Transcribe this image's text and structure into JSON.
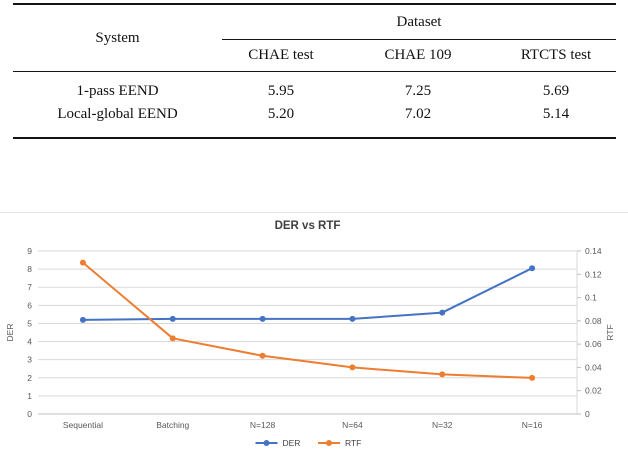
{
  "table": {
    "header": {
      "system": "System",
      "dataset": "Dataset"
    },
    "columns": [
      "CHAE test",
      "CHAE 109",
      "RTCTS test"
    ],
    "rows": [
      {
        "system": "1-pass EEND",
        "values": [
          "5.95",
          "7.25",
          "5.69"
        ]
      },
      {
        "system": "Local-global EEND",
        "values": [
          "5.20",
          "7.02",
          "5.14"
        ]
      }
    ]
  },
  "chart_data": {
    "type": "line",
    "title": "DER vs RTF",
    "categories": [
      "Sequential",
      "Batching",
      "N=128",
      "N=64",
      "N=32",
      "N=16"
    ],
    "series": [
      {
        "name": "DER",
        "axis": "left",
        "color": "#4472C4",
        "values": [
          5.2,
          5.25,
          5.25,
          5.25,
          5.6,
          8.05
        ]
      },
      {
        "name": "RTF",
        "axis": "right",
        "color": "#ED7D31",
        "values": [
          0.13,
          0.065,
          0.05,
          0.04,
          0.034,
          0.031
        ]
      }
    ],
    "left_axis": {
      "label": "DER",
      "min": 0,
      "max": 9,
      "ticks": [
        0,
        1,
        2,
        3,
        4,
        5,
        6,
        7,
        8,
        9
      ],
      "tick_labels": [
        "0",
        "1",
        "2",
        "3",
        "4",
        "5",
        "6",
        "7",
        "8",
        "9"
      ]
    },
    "right_axis": {
      "label": "RTF",
      "min": 0,
      "max": 0.14,
      "ticks": [
        0,
        0.02,
        0.04,
        0.06,
        0.08,
        0.1,
        0.12,
        0.14
      ],
      "tick_labels": [
        "0",
        "0.02",
        "0.04",
        "0.06",
        "0.08",
        "0.1",
        "0.12",
        "0.14"
      ]
    },
    "legend": {
      "position": "bottom",
      "entries": [
        "DER",
        "RTF"
      ]
    },
    "grid": true,
    "colors": {
      "grid": "#d9d9d9",
      "axis": "#bfbfbf",
      "text": "#595959",
      "title": "#404040"
    }
  }
}
